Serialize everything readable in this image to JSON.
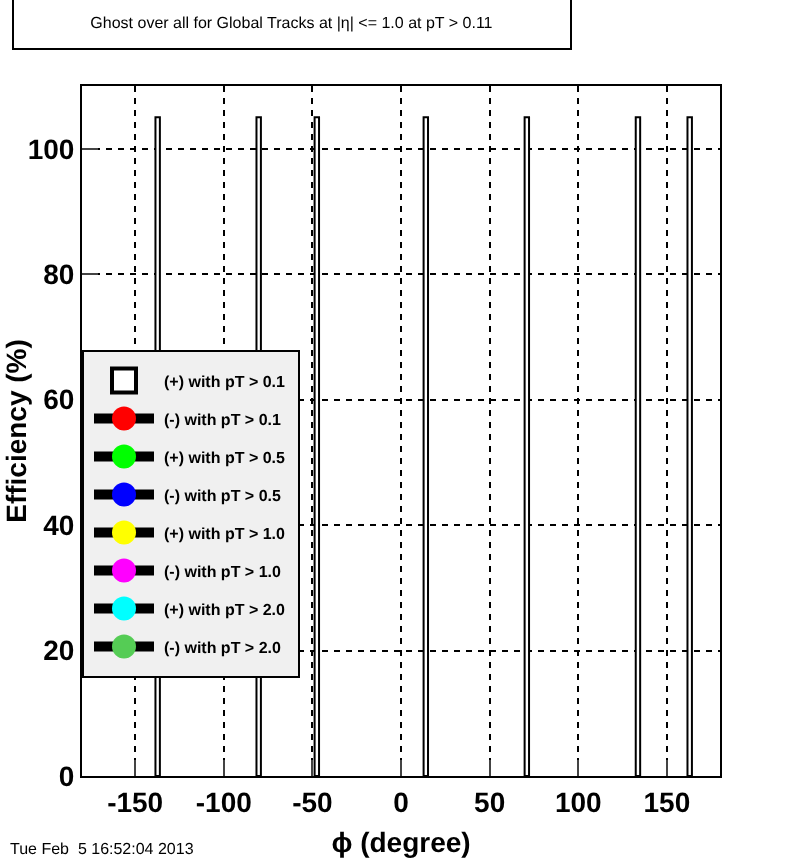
{
  "chart_data": {
    "type": "bar",
    "title": "Ghost over all for Global Tracks at |η| <= 1.0 at pT > 0.11",
    "xlabel": "ϕ (degree)",
    "ylabel": "Efficiency (%)",
    "x": [
      -137.3,
      -80.3,
      -47.5,
      14,
      71,
      133.7,
      162.9
    ],
    "series": [
      {
        "name": "(+) with pT > 0.1",
        "color": "#000000",
        "values": [
          105,
          105,
          105,
          105,
          105,
          105,
          105
        ]
      },
      {
        "name": "(-) with pT > 0.1",
        "color": "#ff0000",
        "type": "scatter",
        "values": [
          null,
          null,
          null,
          null,
          null,
          null,
          null
        ]
      },
      {
        "name": "(+) with pT > 0.5",
        "color": "#00ff00",
        "type": "scatter",
        "values": [
          null,
          null,
          null,
          null,
          null,
          null,
          null
        ]
      },
      {
        "name": "(-) with pT > 0.5",
        "color": "#0000ff",
        "type": "scatter",
        "values": [
          null,
          null,
          null,
          null,
          null,
          null,
          null
        ]
      },
      {
        "name": "(+) with pT > 1.0",
        "color": "#ffff00",
        "type": "scatter",
        "values": [
          null,
          null,
          null,
          null,
          null,
          null,
          null
        ]
      },
      {
        "name": "(-) with pT > 1.0",
        "color": "#ff00ff",
        "type": "scatter",
        "values": [
          null,
          null,
          null,
          null,
          null,
          null,
          null
        ]
      },
      {
        "name": "(+) with pT > 2.0",
        "color": "#00ffff",
        "type": "scatter",
        "values": [
          null,
          null,
          null,
          null,
          null,
          null,
          null
        ]
      },
      {
        "name": "(-) with pT > 2.0",
        "color": "#55cc55",
        "type": "scatter",
        "values": [
          null,
          null,
          null,
          null,
          null,
          null,
          null
        ]
      }
    ],
    "xlim": [
      -180,
      180
    ],
    "xticks": [
      -150,
      -100,
      -50,
      0,
      50,
      100,
      150
    ],
    "ylim": [
      0,
      110
    ],
    "yticks": [
      0,
      20,
      40,
      60,
      80,
      100
    ],
    "grid": true,
    "legend": "left",
    "marker": "circle",
    "annotations": [
      "Tue Feb  5 16:52:04 2013"
    ]
  }
}
